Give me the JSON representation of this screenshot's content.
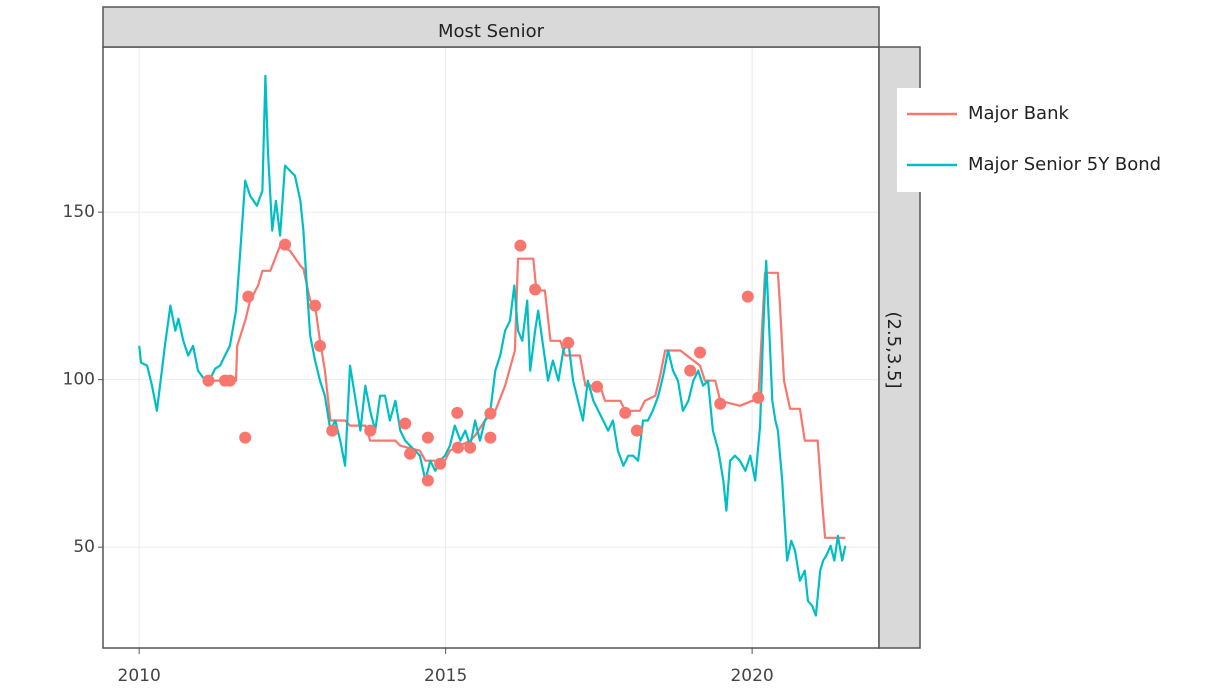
{
  "chart_data": {
    "type": "line",
    "facet_top": "Most Senior",
    "facet_right": "(2.5,3.5]",
    "xlim": [
      2009.41,
      2022.07
    ],
    "xticks": [
      2010,
      2015,
      2020
    ],
    "ylim": [
      19.9,
      199.3
    ],
    "yticks": [
      50,
      100,
      150
    ],
    "grid": true,
    "legend": "right",
    "series": [
      {
        "name": "Major Bank",
        "color": "#F8766D",
        "x": [
          2011.08,
          2011.32,
          2011.58,
          2011.6,
          2011.73,
          2011.81,
          2011.94,
          2012.01,
          2012.14,
          2012.3,
          2012.46,
          2012.63,
          2012.68,
          2012.79,
          2012.87,
          2012.95,
          2013.03,
          2013.12,
          2013.36,
          2013.44,
          2013.69,
          2013.77,
          2014.18,
          2014.26,
          2014.58,
          2014.67,
          2014.99,
          2015.07,
          2015.4,
          2015.48,
          2015.64,
          2015.81,
          2015.97,
          2016.13,
          2016.18,
          2016.43,
          2016.48,
          2016.62,
          2016.71,
          2016.87,
          2016.95,
          2017.19,
          2017.28,
          2017.52,
          2017.6,
          2017.85,
          2017.93,
          2018.17,
          2018.25,
          2018.42,
          2018.5,
          2018.58,
          2018.83,
          2019.15,
          2019.23,
          2019.4,
          2019.48,
          2019.8,
          2020.0,
          2020.1,
          2020.21,
          2020.42,
          2020.45,
          2020.52,
          2020.62,
          2020.78,
          2020.86,
          2021.07,
          2021.14,
          2021.19,
          2021.52
        ],
        "values": [
          99.7,
          99.7,
          99.7,
          110.1,
          117.6,
          123.6,
          128.1,
          132.5,
          132.5,
          140.0,
          138.5,
          134.0,
          133.1,
          123.6,
          122.1,
          111.6,
          102.7,
          87.8,
          87.8,
          86.3,
          86.3,
          81.8,
          81.8,
          80.3,
          78.8,
          75.8,
          75.8,
          78.8,
          81.8,
          83.3,
          87.8,
          90.7,
          98.2,
          108.7,
          136.1,
          136.1,
          126.6,
          126.6,
          111.6,
          111.6,
          107.2,
          107.2,
          98.2,
          98.2,
          93.7,
          93.7,
          90.7,
          90.7,
          93.7,
          95.2,
          101.2,
          108.7,
          108.7,
          104.2,
          99.7,
          99.7,
          93.7,
          92.2,
          93.7,
          93.7,
          131.9,
          131.9,
          123.6,
          99.7,
          91.3,
          91.3,
          81.8,
          81.8,
          63.9,
          52.8,
          52.8
        ]
      },
      {
        "name": "Major Senior 5Y Bond",
        "color": "#00BFC4",
        "x": [
          2010.0,
          2010.03,
          2010.13,
          2010.21,
          2010.29,
          2010.34,
          2010.42,
          2010.51,
          2010.59,
          2010.64,
          2010.72,
          2010.8,
          2010.88,
          2010.96,
          2011.08,
          2011.16,
          2011.24,
          2011.32,
          2011.4,
          2011.48,
          2011.58,
          2011.65,
          2011.73,
          2011.81,
          2011.92,
          2012.01,
          2012.06,
          2012.1,
          2012.17,
          2012.23,
          2012.3,
          2012.38,
          2012.46,
          2012.54,
          2012.63,
          2012.68,
          2012.74,
          2012.79,
          2012.87,
          2012.95,
          2013.03,
          2013.12,
          2013.2,
          2013.28,
          2013.36,
          2013.44,
          2013.52,
          2013.61,
          2013.69,
          2013.77,
          2013.85,
          2013.93,
          2014.01,
          2014.09,
          2014.18,
          2014.26,
          2014.34,
          2014.42,
          2014.5,
          2014.58,
          2014.67,
          2014.75,
          2014.83,
          2014.91,
          2014.99,
          2015.07,
          2015.15,
          2015.24,
          2015.32,
          2015.4,
          2015.48,
          2015.56,
          2015.64,
          2015.73,
          2015.81,
          2015.89,
          2015.97,
          2016.05,
          2016.12,
          2016.18,
          2016.25,
          2016.33,
          2016.38,
          2016.46,
          2016.51,
          2016.59,
          2016.67,
          2016.75,
          2016.84,
          2016.92,
          2017.0,
          2017.08,
          2017.16,
          2017.24,
          2017.32,
          2017.41,
          2017.49,
          2017.57,
          2017.65,
          2017.73,
          2017.81,
          2017.9,
          2017.98,
          2018.06,
          2018.14,
          2018.22,
          2018.3,
          2018.38,
          2018.47,
          2018.55,
          2018.63,
          2018.71,
          2018.79,
          2018.87,
          2018.96,
          2019.04,
          2019.12,
          2019.2,
          2019.28,
          2019.36,
          2019.45,
          2019.53,
          2019.58,
          2019.64,
          2019.72,
          2019.8,
          2019.89,
          2019.97,
          2020.05,
          2020.13,
          2020.18,
          2020.23,
          2020.28,
          2020.33,
          2020.38,
          2020.42,
          2020.49,
          2020.57,
          2020.64,
          2020.7,
          2020.78,
          2020.86,
          2020.91,
          2020.98,
          2021.04,
          2021.11,
          2021.16,
          2021.21,
          2021.28,
          2021.34,
          2021.4,
          2021.47,
          2021.52
        ],
        "values": [
          110.1,
          105.1,
          104.2,
          98.2,
          90.7,
          98.2,
          110.1,
          122.1,
          114.6,
          118.2,
          111.6,
          107.2,
          110.1,
          102.7,
          99.7,
          100.3,
          103.3,
          104.2,
          107.2,
          110.1,
          120.6,
          138.5,
          159.4,
          154.9,
          151.9,
          156.4,
          190.7,
          168.4,
          144.5,
          153.4,
          143.0,
          163.9,
          162.4,
          160.9,
          153.4,
          144.5,
          126.6,
          113.1,
          105.7,
          99.7,
          95.2,
          84.8,
          87.8,
          81.8,
          74.3,
          104.2,
          95.2,
          84.8,
          98.2,
          90.7,
          84.8,
          95.2,
          95.2,
          87.8,
          93.7,
          84.8,
          81.8,
          80.3,
          78.8,
          77.3,
          69.9,
          75.8,
          72.8,
          75.8,
          77.3,
          80.3,
          86.3,
          81.8,
          84.8,
          80.3,
          87.8,
          81.8,
          87.8,
          90.7,
          102.7,
          107.2,
          114.6,
          117.6,
          128.1,
          114.6,
          111.6,
          123.6,
          102.7,
          114.6,
          120.6,
          110.1,
          99.7,
          105.7,
          99.7,
          108.7,
          111.6,
          99.7,
          93.7,
          87.8,
          99.7,
          93.7,
          90.7,
          87.8,
          84.8,
          87.8,
          78.8,
          74.3,
          77.3,
          77.3,
          75.8,
          87.8,
          87.8,
          90.7,
          95.2,
          101.2,
          108.7,
          102.7,
          99.7,
          90.7,
          93.7,
          99.7,
          102.7,
          98.2,
          99.7,
          84.8,
          78.8,
          69.9,
          60.9,
          75.8,
          77.3,
          75.8,
          72.8,
          77.3,
          69.9,
          86.3,
          114.6,
          135.5,
          114.6,
          93.7,
          87.8,
          84.8,
          69.9,
          46.0,
          51.9,
          49.0,
          40.0,
          43.0,
          34.0,
          32.5,
          29.6,
          43.0,
          46.0,
          47.5,
          50.4,
          46.0,
          53.4,
          46.0,
          50.4
        ]
      }
    ],
    "points": {
      "color": "#F8766D",
      "x": [
        2011.13,
        2011.4,
        2011.48,
        2011.73,
        2011.78,
        2012.38,
        2012.87,
        2012.95,
        2013.15,
        2013.77,
        2014.34,
        2014.42,
        2014.71,
        2014.71,
        2014.91,
        2015.19,
        2015.2,
        2015.4,
        2015.73,
        2015.73,
        2016.22,
        2016.46,
        2017.0,
        2017.47,
        2017.93,
        2018.12,
        2018.99,
        2019.15,
        2019.48,
        2019.93,
        2020.1
      ],
      "values": [
        99.7,
        99.7,
        99.7,
        82.7,
        124.8,
        140.3,
        122.1,
        110.1,
        84.8,
        84.8,
        86.9,
        77.9,
        82.7,
        69.9,
        74.9,
        90.1,
        79.7,
        79.7,
        89.9,
        82.7,
        140.0,
        126.9,
        111.0,
        97.9,
        90.1,
        84.8,
        102.7,
        108.1,
        92.8,
        124.8,
        94.6
      ]
    }
  }
}
